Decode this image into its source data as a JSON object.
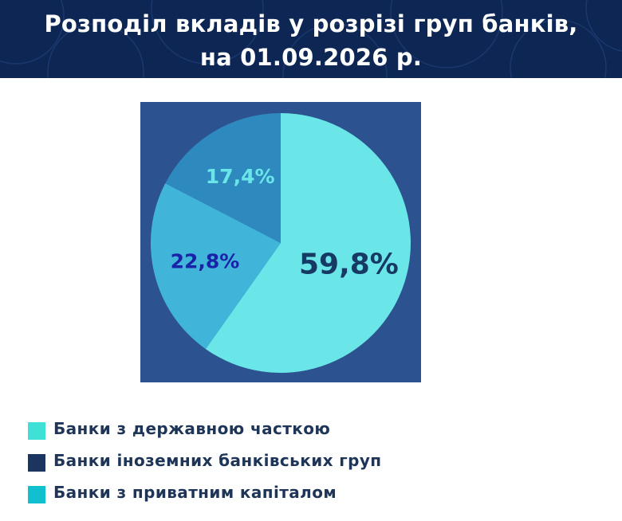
{
  "header": {
    "title_line1": "Розподіл вкладів у розрізі груп банків,",
    "title_line2": "на 01.09.2026 р."
  },
  "chart_data": {
    "type": "pie",
    "categories": [
      "Банки з державною часткою",
      "Банки з приватним капіталом",
      "Банки іноземних банківських груп"
    ],
    "values": [
      59.8,
      22.8,
      17.4
    ],
    "labels": [
      "59,8%",
      "22,8%",
      "17,4%"
    ],
    "colors": [
      "#6ae6e9",
      "#41b5d9",
      "#2e89be"
    ],
    "label_colors": [
      "#163a63",
      "#1a23a8",
      "#6ae6e9"
    ],
    "start_angle_deg": 0,
    "direction": "clockwise",
    "background": "#2c538f",
    "legend": {
      "placement": "bottom-left",
      "items": [
        {
          "label": "Банки з державною часткою",
          "color": "#3fe0d5"
        },
        {
          "label": "Банки іноземних банківських груп",
          "color": "#1c3560"
        },
        {
          "label": "Банки з приватним капіталом",
          "color": "#11c0cf"
        }
      ]
    }
  }
}
